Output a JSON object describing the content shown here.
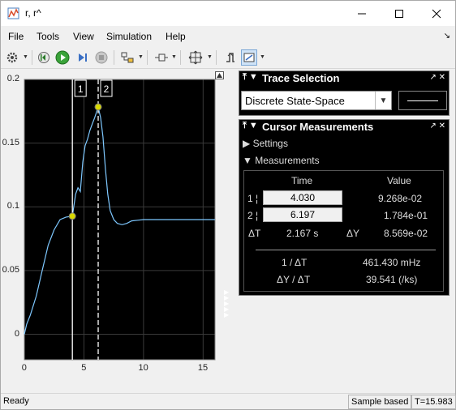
{
  "window": {
    "title": "r, r^"
  },
  "menu": [
    "File",
    "Tools",
    "View",
    "Simulation",
    "Help"
  ],
  "trace_selection": {
    "title": "Trace Selection",
    "selected": "Discrete State-Space"
  },
  "cursor_measurements": {
    "title": "Cursor Measurements",
    "settings_label": "Settings",
    "measurements_label": "Measurements",
    "col_time": "Time",
    "col_value": "Value",
    "rows": [
      {
        "label": "1",
        "time": "4.030",
        "value": "9.268e-02"
      },
      {
        "label": "2",
        "time": "6.197",
        "value": "1.784e-01"
      }
    ],
    "delta_t_label": "ΔT",
    "delta_t": "2.167 s",
    "delta_y_label": "ΔY",
    "delta_y": "8.569e-02",
    "inv_dt_label": "1 / ΔT",
    "inv_dt": "461.430 mHz",
    "slope_label": "ΔY / ΔT",
    "slope": "39.541 (/ks)"
  },
  "status": {
    "left": "Ready",
    "mode": "Sample based",
    "time": "T=15.983"
  },
  "chart_data": {
    "type": "line",
    "x_ticks": [
      "0",
      "5",
      "10",
      "15"
    ],
    "y_ticks": [
      "0",
      "0.05",
      "0.1",
      "0.15",
      "0.2"
    ],
    "xlim": [
      0,
      16
    ],
    "ylim": [
      -0.02,
      0.2
    ],
    "grid": true,
    "cursor_labels": [
      "1",
      "2"
    ],
    "cursors": [
      {
        "label": "1",
        "x": 4.03,
        "y": 0.09268
      },
      {
        "label": "2",
        "x": 6.197,
        "y": 0.1784
      }
    ],
    "series": [
      {
        "color": "#7ec8ff",
        "x": [
          0,
          0.2,
          0.5,
          1.0,
          1.5,
          2.0,
          2.5,
          3.0,
          3.5,
          4.03,
          4.3,
          4.5,
          4.7,
          4.9,
          5.1,
          5.3,
          5.5,
          5.7,
          5.9,
          6.197,
          6.4,
          6.6,
          6.8,
          7.0,
          7.2,
          7.5,
          7.8,
          8.2,
          8.6,
          9.0,
          9.5,
          10,
          11,
          12,
          13,
          14,
          15,
          16
        ],
        "y": [
          0,
          0.008,
          0.015,
          0.03,
          0.05,
          0.07,
          0.082,
          0.09,
          0.092,
          0.0927,
          0.11,
          0.115,
          0.112,
          0.135,
          0.148,
          0.153,
          0.16,
          0.165,
          0.17,
          0.1784,
          0.17,
          0.155,
          0.13,
          0.11,
          0.097,
          0.09,
          0.087,
          0.086,
          0.087,
          0.089,
          0.0895,
          0.09,
          0.09,
          0.09,
          0.09,
          0.09,
          0.09,
          0.09
        ]
      }
    ]
  }
}
